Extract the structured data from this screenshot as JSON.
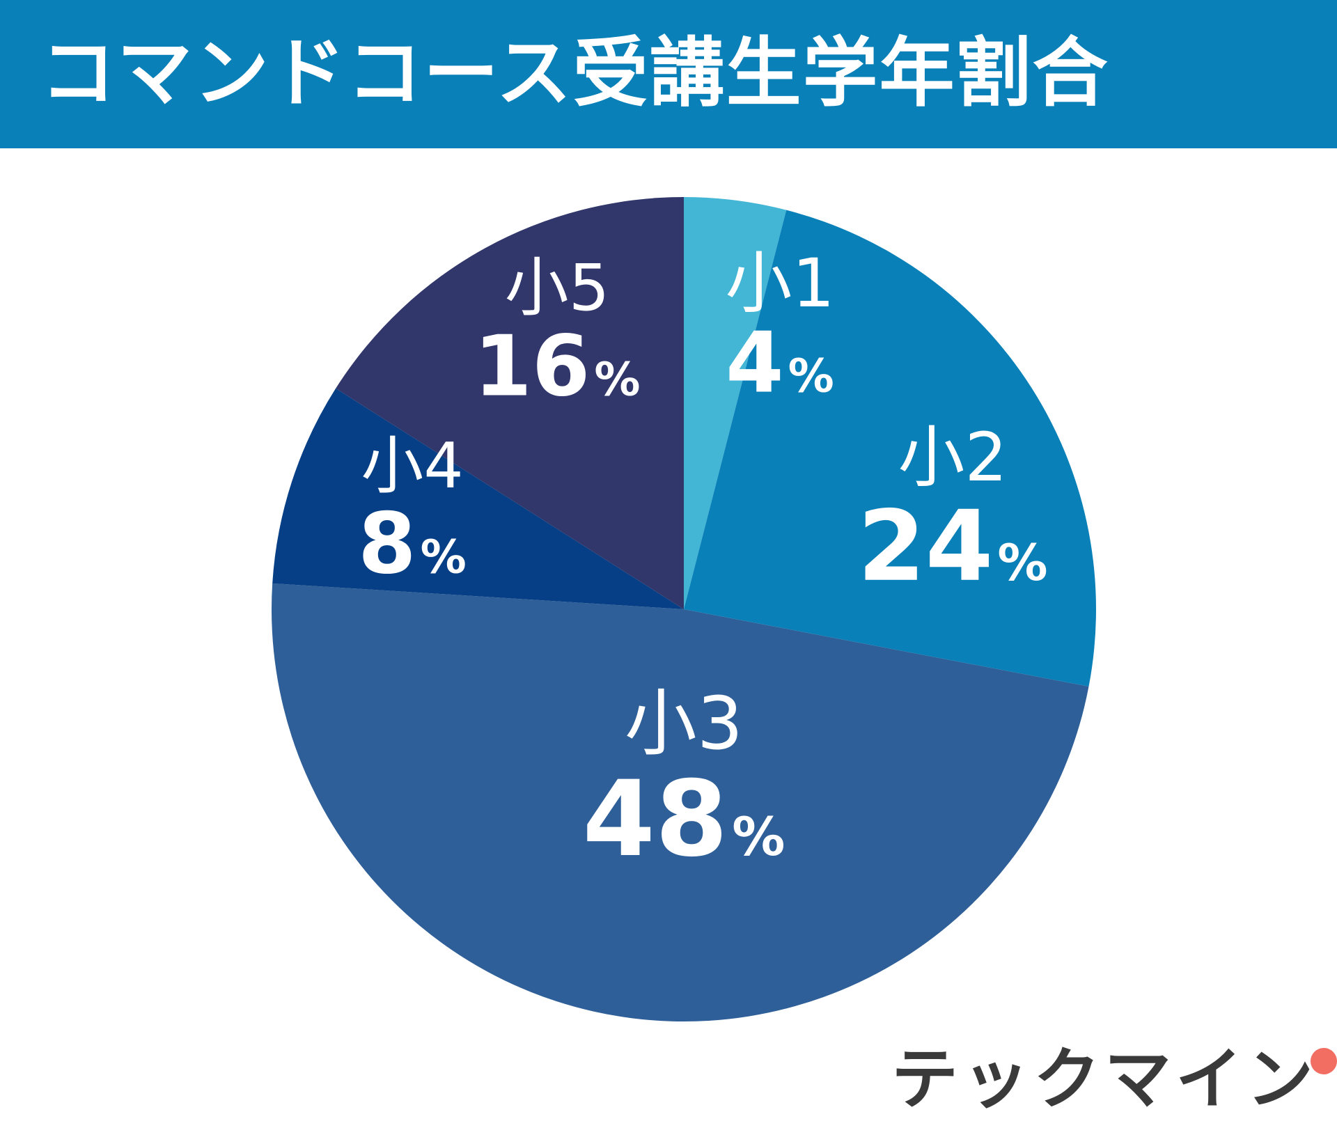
{
  "title": "コマンドコース受講生学年割合",
  "brand": {
    "logo_text": "テックマイン",
    "accent_colors": [
      "#1a8fc4",
      "#f26d62"
    ]
  },
  "chart_data": {
    "type": "pie",
    "title": "コマンドコース受講生学年割合",
    "start_angle_deg": 0,
    "direction": "clockwise",
    "slices": [
      {
        "label": "小1",
        "value": 4,
        "display": "4",
        "unit": "%",
        "color": "#43b6d6"
      },
      {
        "label": "小2",
        "value": 24,
        "display": "24",
        "unit": "%",
        "color": "#0a80b8"
      },
      {
        "label": "小3",
        "value": 48,
        "display": "48",
        "unit": "%",
        "color": "#2e5f98"
      },
      {
        "label": "小4",
        "value": 8,
        "display": "8",
        "unit": "%",
        "color": "#063f85"
      },
      {
        "label": "小5",
        "value": 16,
        "display": "16",
        "unit": "%",
        "color": "#31366b"
      }
    ]
  }
}
